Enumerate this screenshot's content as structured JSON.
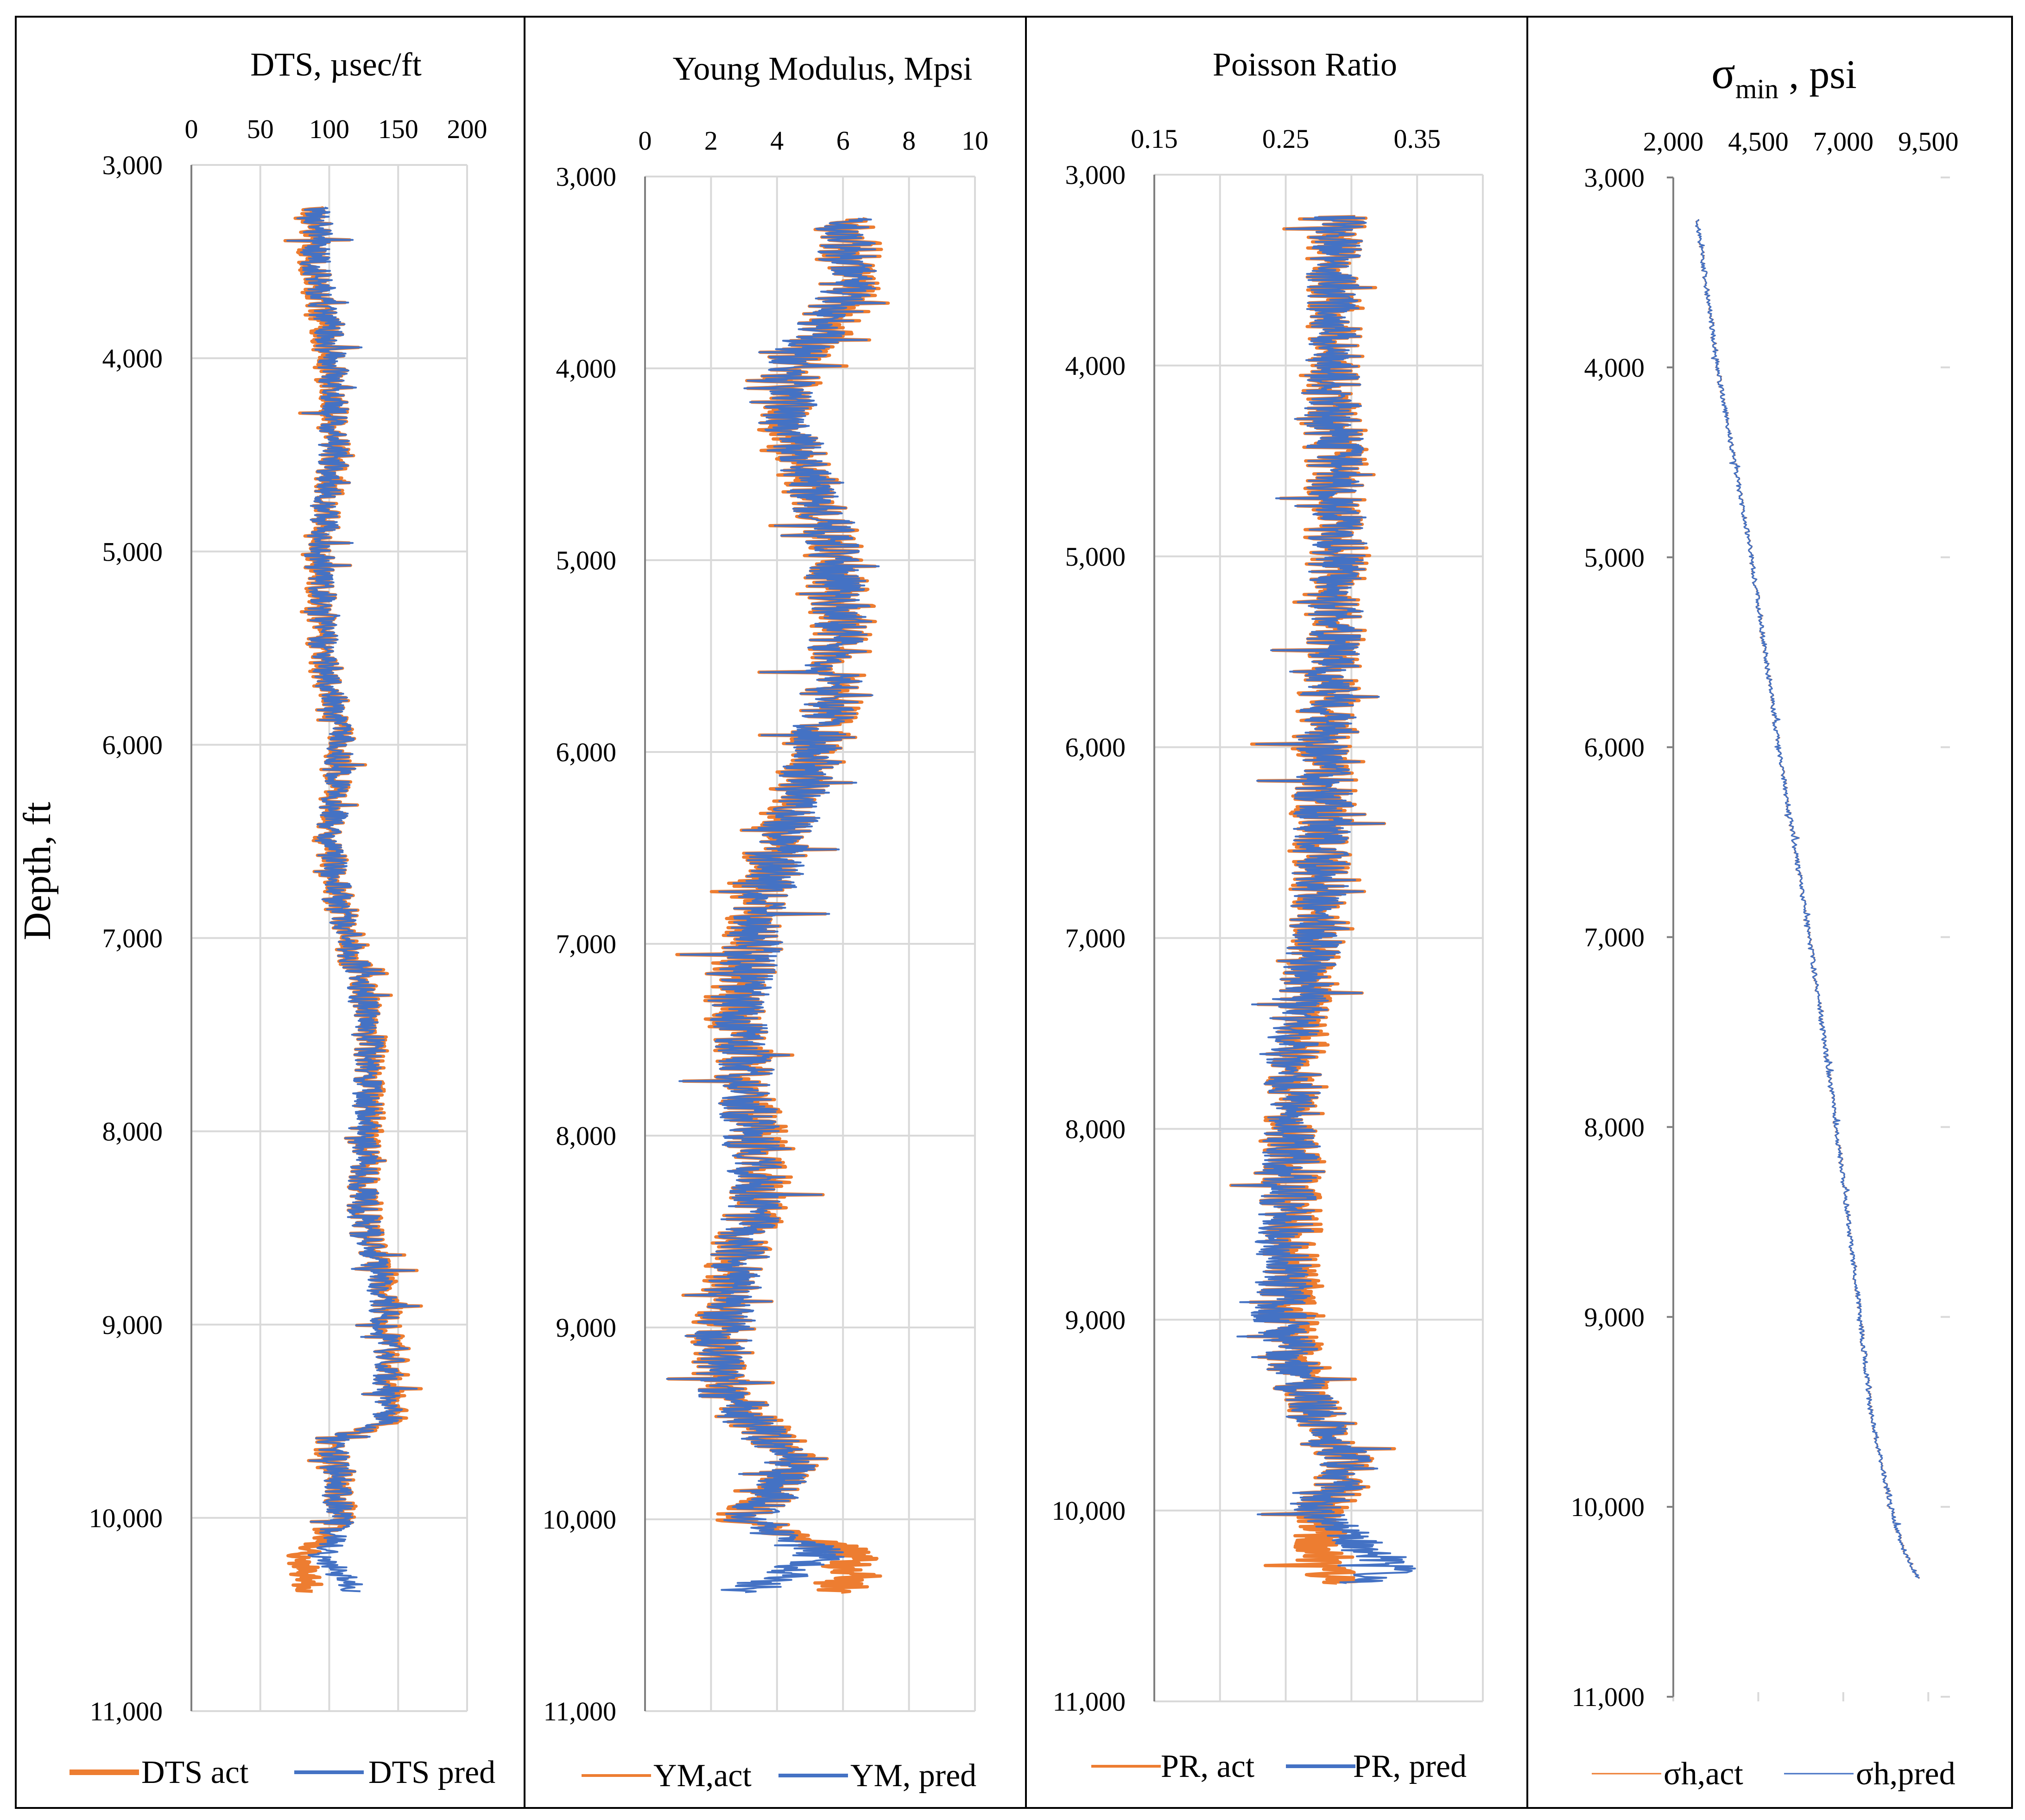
{
  "figure": {
    "depth_axis_label": "Depth, ft"
  },
  "chart_data": [
    {
      "type": "line",
      "orientation": "vertical-depth",
      "title": "DTS, µsec/ft",
      "xlabel": "DTS, µsec/ft",
      "ylabel": "Depth, ft",
      "xlim": [
        0,
        200
      ],
      "x_ticks": [
        0,
        50,
        100,
        150,
        200
      ],
      "x_tick_labels": [
        "0",
        "50",
        "100",
        "150",
        "200"
      ],
      "ylim": [
        3000,
        11000
      ],
      "y_ticks": [
        3000,
        4000,
        5000,
        6000,
        7000,
        8000,
        9000,
        10000,
        11000
      ],
      "y_tick_labels": [
        "3,000",
        "4,000",
        "5,000",
        "6,000",
        "7,000",
        "8,000",
        "9,000",
        "10,000",
        "11,000"
      ],
      "grid": true,
      "legend_position": "bottom",
      "series": [
        {
          "name": "DTS act",
          "color": "#ed7d31",
          "depth": [
            3220,
            3500,
            4000,
            4500,
            5000,
            5500,
            6000,
            6500,
            6900,
            7400,
            7900,
            8400,
            8800,
            9200,
            9500,
            9600,
            10000,
            10200,
            10380
          ],
          "values": [
            90,
            88,
            100,
            105,
            92,
            95,
            108,
            100,
            110,
            130,
            130,
            125,
            140,
            145,
            145,
            100,
            110,
            80,
            85
          ]
        },
        {
          "name": "DTS pred",
          "color": "#4472c4",
          "depth": [
            3220,
            3500,
            4000,
            4500,
            5000,
            5500,
            6000,
            6500,
            6900,
            7400,
            7900,
            8400,
            8800,
            9200,
            9500,
            9600,
            10000,
            10200,
            10380
          ],
          "values": [
            92,
            90,
            102,
            104,
            93,
            96,
            108,
            101,
            110,
            129,
            128,
            124,
            138,
            143,
            142,
            102,
            108,
            95,
            120
          ]
        }
      ]
    },
    {
      "type": "line",
      "orientation": "vertical-depth",
      "title": "Young Modulus, Mpsi",
      "xlabel": "Young Modulus, Mpsi",
      "xlim": [
        0,
        10
      ],
      "x_ticks": [
        0,
        2,
        4,
        6,
        8,
        10
      ],
      "x_tick_labels": [
        "0",
        "2",
        "4",
        "6",
        "8",
        "10"
      ],
      "ylim": [
        3000,
        11000
      ],
      "y_ticks": [
        3000,
        4000,
        5000,
        6000,
        7000,
        8000,
        9000,
        10000,
        11000
      ],
      "y_tick_labels": [
        "3,000",
        "4,000",
        "5,000",
        "6,000",
        "7,000",
        "8,000",
        "9,000",
        "10,000",
        "11,000"
      ],
      "grid": true,
      "legend_position": "bottom",
      "series": [
        {
          "name": "YM,act",
          "color": "#ed7d31",
          "depth": [
            3220,
            3600,
            4000,
            4300,
            4800,
            5300,
            5800,
            6300,
            6800,
            7300,
            7800,
            8300,
            8800,
            9300,
            9700,
            10000,
            10200,
            10380
          ],
          "values": [
            6.0,
            6.3,
            4.5,
            4.2,
            5.5,
            6.0,
            5.6,
            4.5,
            3.5,
            2.7,
            3.2,
            3.5,
            2.5,
            2.2,
            4.5,
            3.0,
            6.5,
            6.0
          ]
        },
        {
          "name": "YM, pred",
          "color": "#4472c4",
          "depth": [
            3220,
            3600,
            4000,
            4300,
            4800,
            5300,
            5800,
            6300,
            6800,
            7300,
            7800,
            8300,
            8800,
            9300,
            9700,
            10000,
            10200,
            10380
          ],
          "values": [
            6.0,
            6.2,
            4.4,
            4.3,
            5.5,
            6.0,
            5.5,
            4.6,
            3.6,
            2.8,
            3.1,
            3.4,
            2.6,
            2.2,
            4.4,
            3.2,
            5.5,
            3.0
          ]
        }
      ]
    },
    {
      "type": "line",
      "orientation": "vertical-depth",
      "title": "Poisson Ratio",
      "xlabel": "Poisson Ratio",
      "xlim": [
        0.15,
        0.4
      ],
      "x_ticks": [
        0.15,
        0.2,
        0.25,
        0.3,
        0.35,
        0.4
      ],
      "x_tick_labels": [
        "0.15",
        "",
        "0.25",
        "",
        "0.35",
        ""
      ],
      "ylim": [
        3000,
        11000
      ],
      "y_ticks": [
        3000,
        4000,
        5000,
        6000,
        7000,
        8000,
        9000,
        10000,
        11000
      ],
      "y_tick_labels": [
        "3,000",
        "4,000",
        "5,000",
        "6,000",
        "7,000",
        "8,000",
        "9,000",
        "10,000",
        "11,000"
      ],
      "grid": true,
      "legend_position": "bottom",
      "series": [
        {
          "name": "PR, act",
          "color": "#ed7d31",
          "depth": [
            3220,
            4000,
            5000,
            6000,
            7000,
            7500,
            8000,
            8500,
            9000,
            9500,
            9800,
            10000,
            10300,
            10380
          ],
          "values": [
            0.29,
            0.285,
            0.29,
            0.28,
            0.275,
            0.26,
            0.255,
            0.255,
            0.25,
            0.27,
            0.3,
            0.275,
            0.275,
            0.29
          ]
        },
        {
          "name": "PR, pred",
          "color": "#4472c4",
          "depth": [
            3220,
            4000,
            5000,
            6000,
            7000,
            7500,
            8000,
            8500,
            9000,
            9500,
            9800,
            10000,
            10300,
            10380
          ],
          "values": [
            0.29,
            0.285,
            0.29,
            0.28,
            0.275,
            0.255,
            0.255,
            0.25,
            0.245,
            0.27,
            0.3,
            0.27,
            0.33,
            0.3
          ]
        }
      ]
    },
    {
      "type": "line",
      "orientation": "vertical-depth",
      "title": "σmin , psi",
      "title_main": "σ",
      "title_sub": "min",
      "title_rest": " , psi",
      "xlabel": "σmin , psi",
      "xlim": [
        2000,
        10000
      ],
      "x_ticks": [
        2000,
        4500,
        7000,
        9500
      ],
      "x_tick_labels": [
        "2,000",
        "4,500",
        "7,000",
        "9,500"
      ],
      "ylim": [
        3000,
        11000
      ],
      "y_ticks": [
        3000,
        4000,
        5000,
        6000,
        7000,
        8000,
        9000,
        10000,
        11000
      ],
      "y_tick_labels": [
        "3,000",
        "4,000",
        "5,000",
        "6,000",
        "7,000",
        "8,000",
        "9,000",
        "10,000",
        "11,000"
      ],
      "grid": true,
      "legend_position": "bottom",
      "series": [
        {
          "name": "σh,act",
          "color": "#ed7d31",
          "depth": [
            3220,
            4000,
            5000,
            6000,
            7000,
            8000,
            9000,
            9500,
            10000,
            10200,
            10380
          ],
          "values": [
            2700,
            3300,
            4300,
            5100,
            6000,
            6800,
            7500,
            7800,
            8400,
            8700,
            9200
          ]
        },
        {
          "name": "σh,pred",
          "color": "#4472c4",
          "depth": [
            3220,
            4000,
            5000,
            6000,
            7000,
            8000,
            9000,
            9500,
            10000,
            10200,
            10380
          ],
          "values": [
            2700,
            3300,
            4300,
            5100,
            6000,
            6800,
            7500,
            7800,
            8400,
            8700,
            9200
          ]
        }
      ]
    }
  ]
}
